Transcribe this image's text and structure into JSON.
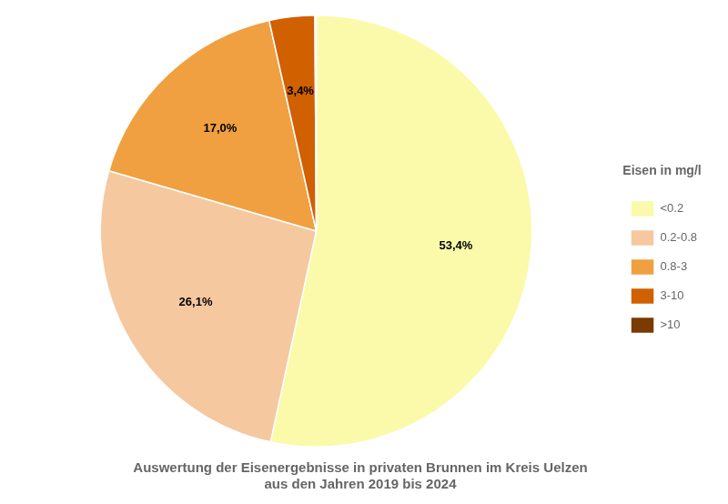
{
  "chart_data": {
    "type": "pie",
    "title": "Auswertung der Eisenergebnisse in privaten Brunnen im Kreis Uelzen\naus den Jahren 2019 bis 2024",
    "legend_title": "Eisen in mg/l",
    "categories": [
      "<0.2",
      "0.2-0.8",
      "0.8-3",
      "3-10",
      ">10"
    ],
    "values": [
      53.4,
      26.1,
      17.0,
      3.4,
      0.1
    ],
    "value_labels": [
      "53,4%",
      "26,1%",
      "17,0%",
      "3,4%",
      null
    ],
    "colors": [
      "#FAFAAA",
      "#F5C8A0",
      "#F0A040",
      "#D06000",
      "#7A3A00"
    ],
    "data_labels": true,
    "legend": "right"
  }
}
